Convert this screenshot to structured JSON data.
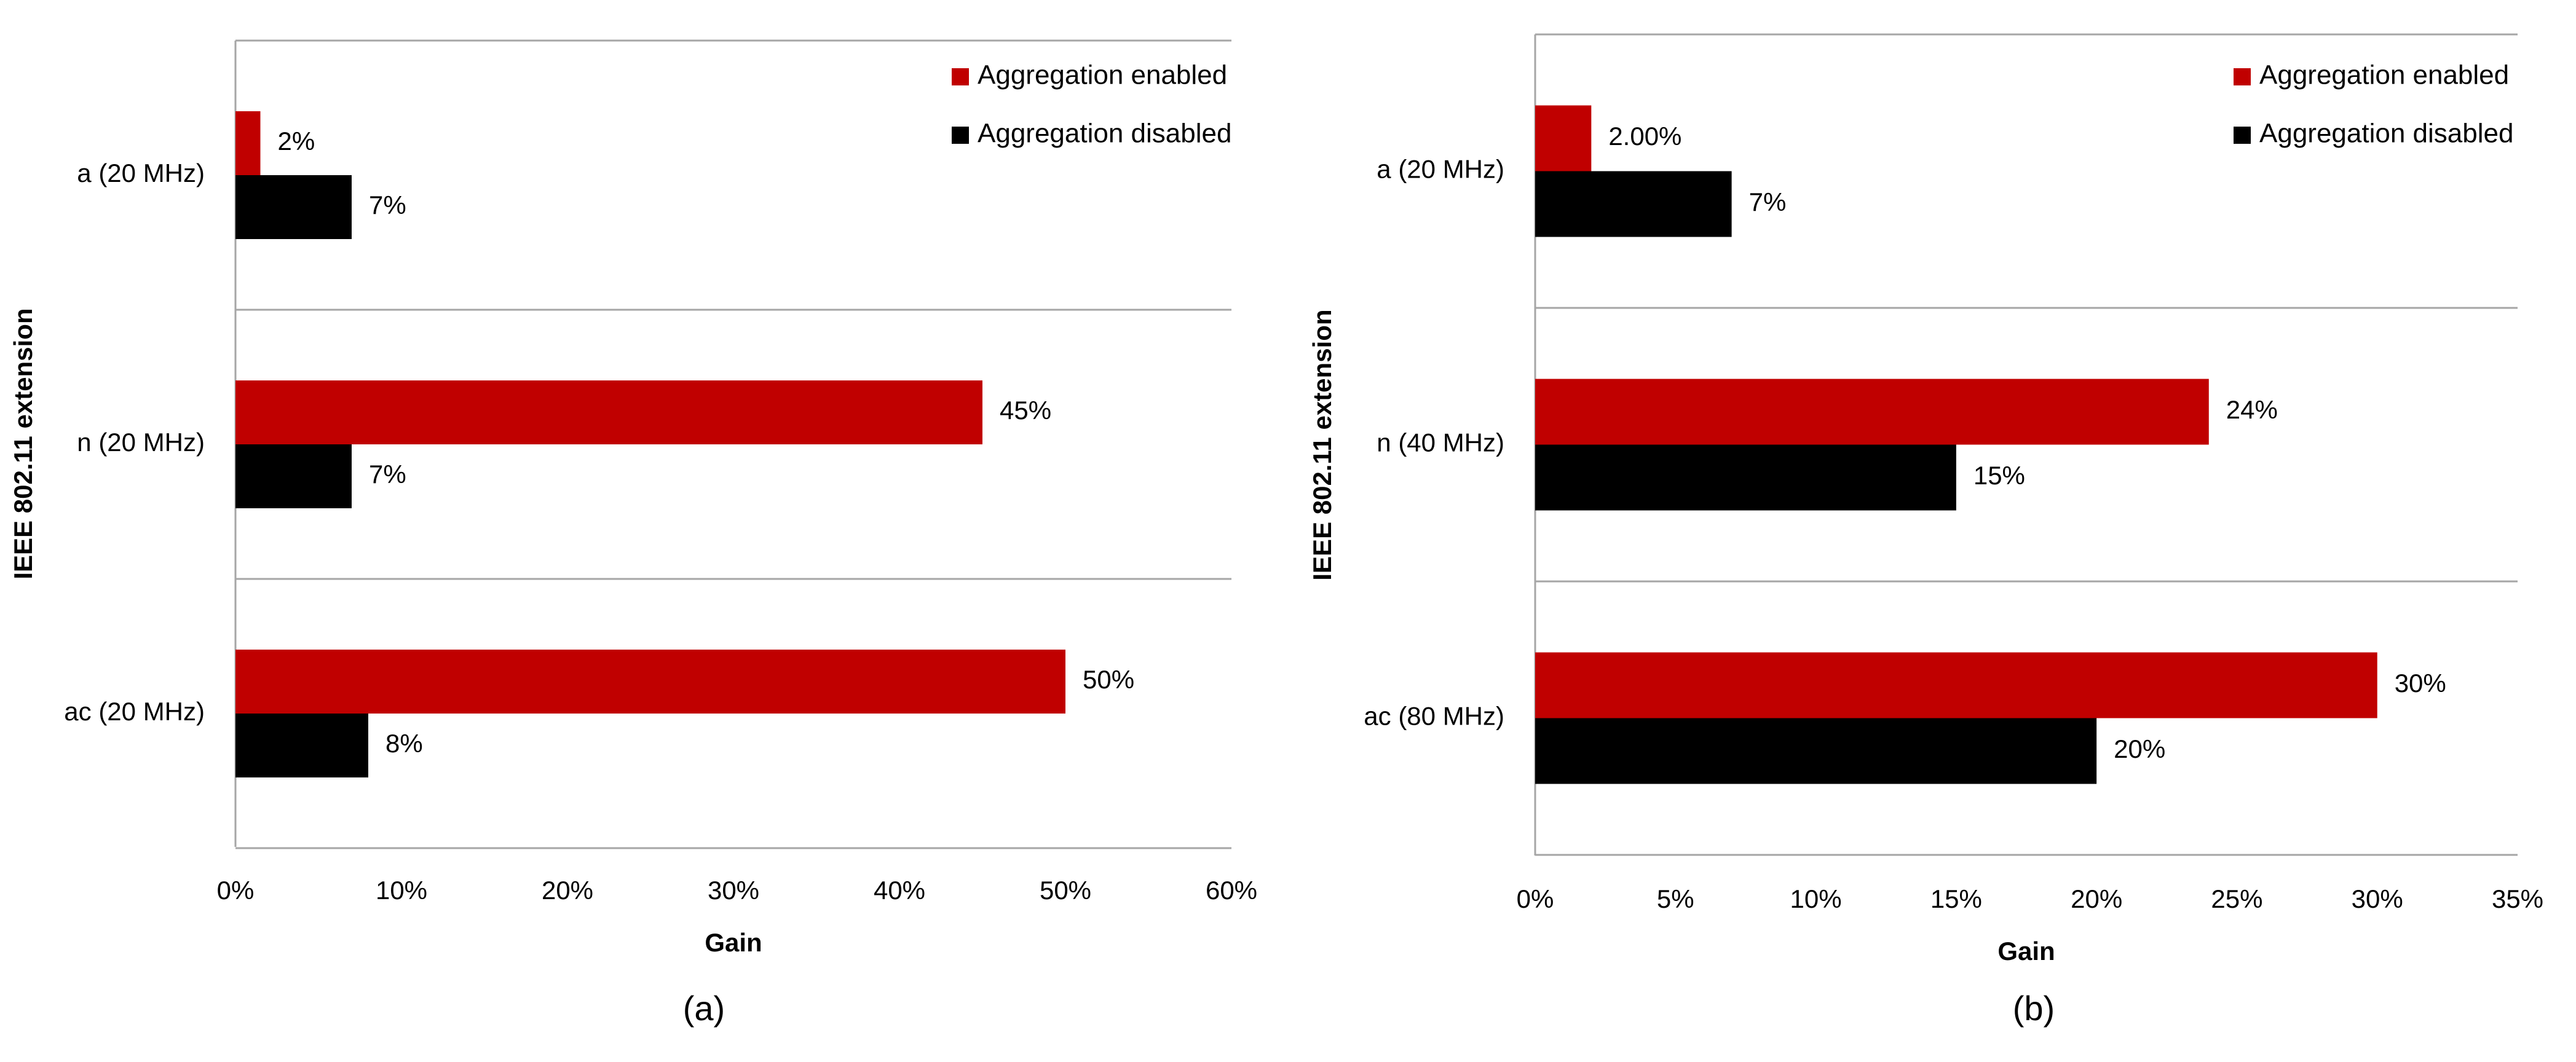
{
  "chart_data": [
    {
      "id": "a",
      "type": "bar",
      "orientation": "horizontal",
      "caption": "(a)",
      "title": "",
      "categories": [
        "a (20 MHz)",
        "n (20 MHz)",
        "ac (20 MHz)"
      ],
      "series": [
        {
          "name": "Aggregation enabled",
          "color": "#c00000",
          "values": [
            1.5,
            45,
            50
          ],
          "labels": [
            "2%",
            "45%",
            "50%"
          ]
        },
        {
          "name": "Aggregation disabled",
          "color": "#000000",
          "values": [
            7,
            7,
            8
          ],
          "labels": [
            "7%",
            "7%",
            "8%"
          ]
        }
      ],
      "xlabel": "Gain",
      "ylabel": "IEEE 802.11 extension",
      "xlim": [
        0,
        60
      ],
      "xticks": [
        "0%",
        "10%",
        "20%",
        "30%",
        "40%",
        "50%",
        "60%"
      ],
      "legend": "top-right"
    },
    {
      "id": "b",
      "type": "bar",
      "orientation": "horizontal",
      "caption": "(b)",
      "title": "",
      "categories": [
        "a (20 MHz)",
        "n (40 MHz)",
        "ac (80 MHz)"
      ],
      "series": [
        {
          "name": "Aggregation enabled",
          "color": "#c00000",
          "values": [
            2,
            24,
            30
          ],
          "labels": [
            "2.00%",
            "24%",
            "30%"
          ]
        },
        {
          "name": "Aggregation disabled",
          "color": "#000000",
          "values": [
            7,
            15,
            20
          ],
          "labels": [
            "7%",
            "15%",
            "20%"
          ]
        }
      ],
      "xlabel": "Gain",
      "ylabel": "IEEE 802.11 extension",
      "xlim": [
        0,
        35
      ],
      "xticks": [
        "0%",
        "5%",
        "10%",
        "15%",
        "20%",
        "25%",
        "30%",
        "35%"
      ],
      "legend": "top-right"
    }
  ]
}
